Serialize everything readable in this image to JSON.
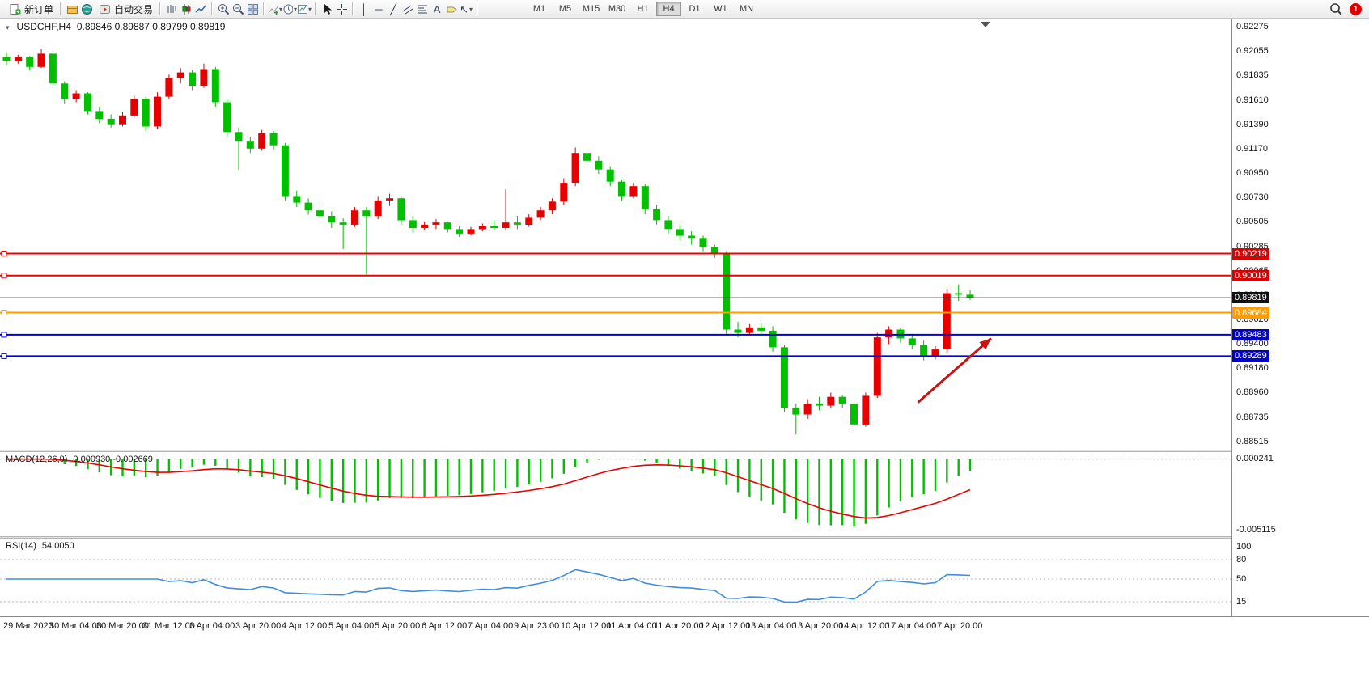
{
  "toolbar": {
    "new_order_label": "新订单",
    "autotrade_label": "自动交易",
    "timeframe_labels": [
      "M1",
      "M5",
      "M15",
      "M30",
      "H1",
      "H4",
      "D1",
      "W1",
      "MN"
    ],
    "active_timeframe": "H4",
    "notification_badge": "1",
    "tool_glyphs": {
      "vertical_line": "│",
      "horizontal_line": "─",
      "trendline": "╱",
      "text": "A",
      "arrows": "↖"
    }
  },
  "chart": {
    "title_symbol": "USDCHF,H4",
    "title_ohlc": "0.89846 0.89887 0.89799 0.89819",
    "one_click_glyph": "▾"
  },
  "chart_data": {
    "type": "candlestick",
    "symbol": "USDCHF",
    "period": "H4",
    "current_ohlc": {
      "open": "0.89846",
      "high": "0.89887",
      "low": "0.89799",
      "close": "0.89819"
    },
    "colors": {
      "bull": "#e60000",
      "bear": "#00c000",
      "macd_histogram": "#00c000",
      "macd_signal": "#ee0000",
      "rsi_line": "#3f8ede"
    },
    "price_axis": {
      "labels": [
        "0.92275",
        "0.92055",
        "0.91835",
        "0.91610",
        "0.91390",
        "0.91170",
        "0.90950",
        "0.90730",
        "0.90505",
        "0.90285",
        "0.90065",
        "0.89845",
        "0.89620",
        "0.89400",
        "0.89180",
        "0.88960",
        "0.88735",
        "0.88515"
      ]
    },
    "time_labels": [
      "29 Mar 2023",
      "30 Mar 04:00",
      "30 Mar 20:00",
      "31 Mar 12:00",
      "3 Apr 04:00",
      "3 Apr 20:00",
      "4 Apr 12:00",
      "5 Apr 04:00",
      "5 Apr 20:00",
      "6 Apr 12:00",
      "7 Apr 04:00",
      "9 Apr 23:00",
      "10 Apr 12:00",
      "11 Apr 04:00",
      "11 Apr 20:00",
      "12 Apr 12:00",
      "13 Apr 04:00",
      "13 Apr 20:00",
      "14 Apr 12:00",
      "17 Apr 04:00",
      "17 Apr 20:00"
    ],
    "candles_per_label": 4,
    "ohlc": [
      [
        0.92,
        0.9204,
        0.9193,
        0.9196
      ],
      [
        0.9196,
        0.9202,
        0.9194,
        0.92
      ],
      [
        0.92,
        0.9201,
        0.9188,
        0.9191
      ],
      [
        0.9191,
        0.9207,
        0.919,
        0.9203
      ],
      [
        0.9203,
        0.9205,
        0.9172,
        0.9176
      ],
      [
        0.9176,
        0.9178,
        0.9158,
        0.9162
      ],
      [
        0.9162,
        0.917,
        0.9159,
        0.9167
      ],
      [
        0.9167,
        0.9168,
        0.9148,
        0.9151
      ],
      [
        0.9151,
        0.9155,
        0.914,
        0.9144
      ],
      [
        0.9144,
        0.9148,
        0.9136,
        0.9139
      ],
      [
        0.9139,
        0.915,
        0.9137,
        0.9147
      ],
      [
        0.9147,
        0.9165,
        0.9145,
        0.9162
      ],
      [
        0.9162,
        0.9164,
        0.9133,
        0.9137
      ],
      [
        0.9137,
        0.9168,
        0.9135,
        0.9164
      ],
      [
        0.9164,
        0.9184,
        0.9162,
        0.9181
      ],
      [
        0.9181,
        0.919,
        0.9176,
        0.9186
      ],
      [
        0.9186,
        0.9188,
        0.917,
        0.9174
      ],
      [
        0.9174,
        0.9194,
        0.9172,
        0.9189
      ],
      [
        0.9189,
        0.9191,
        0.9155,
        0.9159
      ],
      [
        0.9159,
        0.9162,
        0.9128,
        0.9132
      ],
      [
        0.9132,
        0.9136,
        0.9098,
        0.9124
      ],
      [
        0.9124,
        0.9128,
        0.9113,
        0.9117
      ],
      [
        0.9117,
        0.9134,
        0.9115,
        0.9131
      ],
      [
        0.9131,
        0.9133,
        0.9116,
        0.912
      ],
      [
        0.912,
        0.9122,
        0.907,
        0.9074
      ],
      [
        0.9074,
        0.9079,
        0.9064,
        0.9068
      ],
      [
        0.9068,
        0.9072,
        0.9057,
        0.9061
      ],
      [
        0.9061,
        0.9065,
        0.9052,
        0.9056
      ],
      [
        0.9056,
        0.906,
        0.9045,
        0.905
      ],
      [
        0.905,
        0.9054,
        0.9026,
        0.9048
      ],
      [
        0.9048,
        0.9064,
        0.9046,
        0.9061
      ],
      [
        0.9061,
        0.9064,
        0.9003,
        0.9056
      ],
      [
        0.9056,
        0.9074,
        0.9053,
        0.907
      ],
      [
        0.907,
        0.9076,
        0.9065,
        0.9072
      ],
      [
        0.9072,
        0.9074,
        0.9048,
        0.9052
      ],
      [
        0.9052,
        0.9056,
        0.9041,
        0.9045
      ],
      [
        0.9045,
        0.9051,
        0.9043,
        0.9048
      ],
      [
        0.9048,
        0.9053,
        0.9044,
        0.905
      ],
      [
        0.905,
        0.9051,
        0.9041,
        0.9044
      ],
      [
        0.9044,
        0.9047,
        0.9037,
        0.904
      ],
      [
        0.904,
        0.9046,
        0.9038,
        0.9044
      ],
      [
        0.9044,
        0.9049,
        0.9042,
        0.9047
      ],
      [
        0.9047,
        0.9052,
        0.9043,
        0.9045
      ],
      [
        0.9045,
        0.908,
        0.9043,
        0.905
      ],
      [
        0.905,
        0.9056,
        0.9044,
        0.9048
      ],
      [
        0.9048,
        0.9058,
        0.9046,
        0.9055
      ],
      [
        0.9055,
        0.9064,
        0.9052,
        0.9061
      ],
      [
        0.9061,
        0.9072,
        0.9058,
        0.9069
      ],
      [
        0.9069,
        0.909,
        0.9066,
        0.9086
      ],
      [
        0.9086,
        0.9118,
        0.9083,
        0.9113
      ],
      [
        0.9113,
        0.9116,
        0.9102,
        0.9106
      ],
      [
        0.9106,
        0.911,
        0.9094,
        0.9098
      ],
      [
        0.9098,
        0.9101,
        0.9083,
        0.9087
      ],
      [
        0.9087,
        0.9089,
        0.907,
        0.9074
      ],
      [
        0.9074,
        0.9086,
        0.9072,
        0.9083
      ],
      [
        0.9083,
        0.9085,
        0.9058,
        0.9062
      ],
      [
        0.9062,
        0.9066,
        0.9048,
        0.9052
      ],
      [
        0.9052,
        0.9056,
        0.904,
        0.9044
      ],
      [
        0.9044,
        0.9048,
        0.9034,
        0.9038
      ],
      [
        0.9038,
        0.9042,
        0.903,
        0.9036
      ],
      [
        0.9036,
        0.9038,
        0.9024,
        0.9028
      ],
      [
        0.9028,
        0.903,
        0.9018,
        0.9022
      ],
      [
        0.9022,
        0.9024,
        0.8948,
        0.8953
      ],
      [
        0.8953,
        0.896,
        0.8946,
        0.895
      ],
      [
        0.895,
        0.8958,
        0.8947,
        0.8955
      ],
      [
        0.8955,
        0.8959,
        0.8948,
        0.8952
      ],
      [
        0.8952,
        0.8956,
        0.8933,
        0.8937
      ],
      [
        0.8937,
        0.8939,
        0.8878,
        0.8882
      ],
      [
        0.8882,
        0.8886,
        0.8858,
        0.8876
      ],
      [
        0.8876,
        0.889,
        0.8872,
        0.8886
      ],
      [
        0.8886,
        0.8892,
        0.888,
        0.8884
      ],
      [
        0.8884,
        0.8896,
        0.8882,
        0.8892
      ],
      [
        0.8892,
        0.8894,
        0.8882,
        0.8886
      ],
      [
        0.8886,
        0.8888,
        0.8861,
        0.8867
      ],
      [
        0.8867,
        0.8896,
        0.8865,
        0.8893
      ],
      [
        0.8893,
        0.895,
        0.8891,
        0.8946
      ],
      [
        0.8946,
        0.8956,
        0.894,
        0.8953
      ],
      [
        0.8953,
        0.8955,
        0.8941,
        0.8945
      ],
      [
        0.8945,
        0.8949,
        0.8935,
        0.8939
      ],
      [
        0.8939,
        0.8943,
        0.8925,
        0.8929
      ],
      [
        0.8929,
        0.8938,
        0.8926,
        0.8935
      ],
      [
        0.8935,
        0.899,
        0.8932,
        0.8986
      ],
      [
        0.8986,
        0.8994,
        0.8979,
        0.89846
      ],
      [
        0.89846,
        0.89887,
        0.89799,
        0.89819
      ]
    ],
    "hlines": [
      {
        "price": 0.90219,
        "label": "0.90219",
        "color": "#ee0000",
        "stroke_w": 2,
        "badge_bg": "#dd0000",
        "handle": true
      },
      {
        "price": 0.90019,
        "label": "0.90019",
        "color": "#ee0000",
        "stroke_w": 2,
        "badge_bg": "#dd0000",
        "handle": true
      },
      {
        "price": 0.89819,
        "label": "0.89819",
        "color": "#3c3c3c",
        "stroke_w": 1,
        "badge_bg": "#101010",
        "handle": false
      },
      {
        "price": 0.89684,
        "label": "0.89684",
        "color": "#ff9c00",
        "stroke_w": 2,
        "badge_bg": "#ff9c00",
        "handle": true
      },
      {
        "price": 0.89483,
        "label": "0.89483",
        "color": "#0000e0",
        "stroke_w": 2,
        "badge_bg": "#0000cc",
        "handle": true
      },
      {
        "price": 0.89289,
        "label": "0.89289",
        "color": "#0000e0",
        "stroke_w": 2,
        "badge_bg": "#0000cc",
        "handle": true
      }
    ],
    "trend_arrow": {
      "from_index": 78.5,
      "from_price": 0.8887,
      "to_index": 84.8,
      "to_price": 0.8945,
      "color": "#cc1111"
    },
    "macd": {
      "name": "MACD(12,26,9)",
      "fast": 12,
      "slow": 26,
      "signal": 9,
      "values_text": "0.000930 -0.002669",
      "axis_max_label": "0.000241",
      "axis_min_label": "-0.005115"
    },
    "rsi": {
      "name": "RSI(14)",
      "period": 14,
      "value_text": "54.0050",
      "axis_labels": [
        "100",
        "80",
        "50",
        "15"
      ],
      "levels": [
        80,
        50,
        15
      ]
    }
  }
}
